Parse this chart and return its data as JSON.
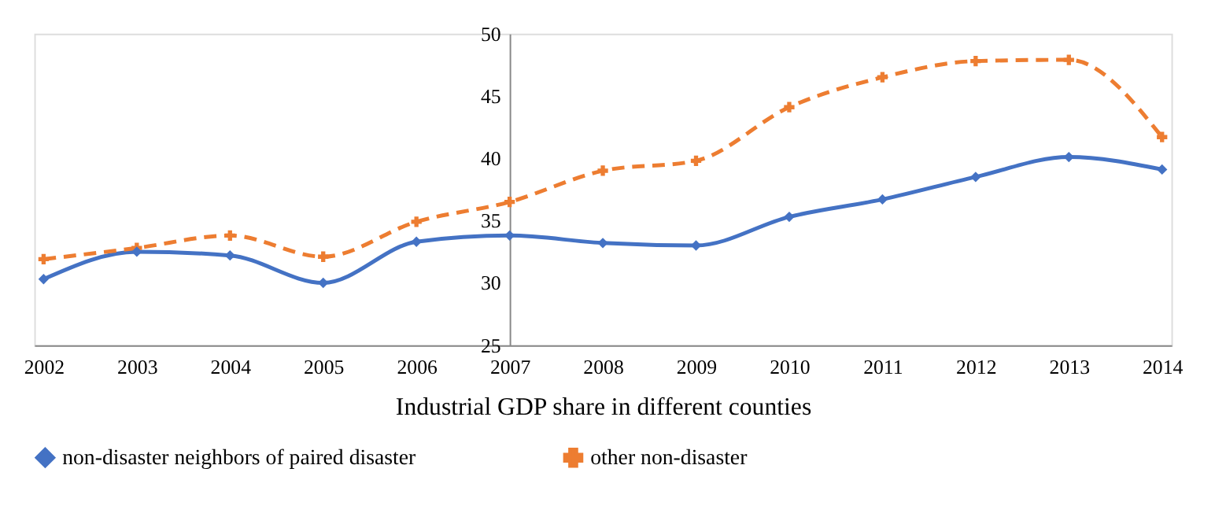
{
  "chart_data": {
    "type": "line",
    "xlabel": "Industrial GDP  share in different counties",
    "categories": [
      "2002",
      "2003",
      "2004",
      "2005",
      "2006",
      "2007",
      "2008",
      "2009",
      "2010",
      "2011",
      "2012",
      "2013",
      "2014"
    ],
    "ylim": [
      25,
      50
    ],
    "yticks": [
      25,
      30,
      35,
      40,
      45,
      50
    ],
    "legend": "bottom",
    "series": [
      {
        "name": "non-disaster neighbors of paired disaster",
        "color": "#4472c4",
        "marker": "diamond",
        "line_style": "solid",
        "values": [
          30.3,
          32.5,
          32.2,
          30.0,
          33.3,
          33.8,
          33.2,
          33.0,
          35.3,
          36.7,
          38.5,
          40.1,
          39.1
        ]
      },
      {
        "name": "other non-disaster",
        "color": "#ed7d31",
        "marker": "cross",
        "line_style": "dashed",
        "values": [
          31.9,
          32.8,
          33.8,
          32.1,
          34.9,
          36.5,
          39.0,
          39.8,
          44.1,
          46.5,
          47.8,
          47.9,
          41.7
        ]
      }
    ]
  }
}
